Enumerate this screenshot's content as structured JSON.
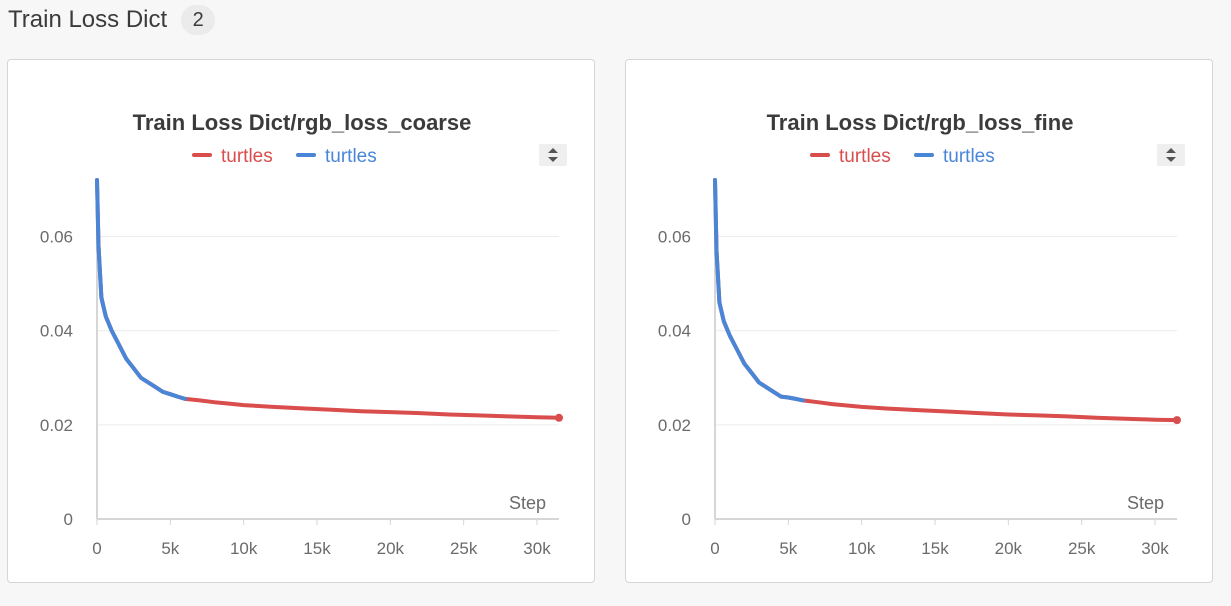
{
  "section": {
    "title": "Train Loss Dict",
    "count": "2"
  },
  "colors": {
    "red_run": "#d94d4d",
    "blue_run": "#4a86d8"
  },
  "chart_data": [
    {
      "type": "line",
      "title": "Train Loss Dict/rgb_loss_coarse",
      "xlabel": "Step",
      "ylabel": "",
      "xlim": [
        0,
        31500
      ],
      "ylim": [
        0,
        0.072
      ],
      "x_ticks": [
        0,
        5000,
        10000,
        15000,
        20000,
        25000,
        30000
      ],
      "x_tick_labels": [
        "0",
        "5k",
        "10k",
        "15k",
        "20k",
        "25k",
        "30k"
      ],
      "y_ticks": [
        0,
        0.02,
        0.04,
        0.06
      ],
      "y_tick_labels": [
        "0",
        "0.02",
        "0.04",
        "0.06"
      ],
      "grid": true,
      "legend_position": "top",
      "series": [
        {
          "name": "turtles",
          "color": "#d94d4d",
          "x": [
            0,
            100,
            300,
            600,
            1000,
            1500,
            2000,
            2500,
            3000,
            3500,
            4000,
            4500,
            5000,
            5500,
            6000,
            7000,
            8000,
            9000,
            10000,
            12000,
            14000,
            16000,
            18000,
            20000,
            22000,
            24000,
            26000,
            28000,
            30000,
            31500
          ],
          "y": [
            0.072,
            0.058,
            0.047,
            0.043,
            0.04,
            0.037,
            0.034,
            0.032,
            0.03,
            0.029,
            0.028,
            0.027,
            0.0265,
            0.026,
            0.0255,
            0.0252,
            0.0248,
            0.0245,
            0.0242,
            0.0238,
            0.0235,
            0.0232,
            0.0229,
            0.0227,
            0.0225,
            0.0222,
            0.022,
            0.0218,
            0.0216,
            0.0215
          ]
        },
        {
          "name": "turtles",
          "color": "#4a86d8",
          "x": [
            0,
            100,
            300,
            600,
            1000,
            1500,
            2000,
            2500,
            3000,
            3500,
            4000,
            4500,
            5000,
            5500,
            6000
          ],
          "y": [
            0.072,
            0.058,
            0.047,
            0.043,
            0.04,
            0.037,
            0.034,
            0.032,
            0.03,
            0.029,
            0.028,
            0.027,
            0.0265,
            0.026,
            0.0255
          ]
        }
      ]
    },
    {
      "type": "line",
      "title": "Train Loss Dict/rgb_loss_fine",
      "xlabel": "Step",
      "ylabel": "",
      "xlim": [
        0,
        31500
      ],
      "ylim": [
        0,
        0.072
      ],
      "x_ticks": [
        0,
        5000,
        10000,
        15000,
        20000,
        25000,
        30000
      ],
      "x_tick_labels": [
        "0",
        "5k",
        "10k",
        "15k",
        "20k",
        "25k",
        "30k"
      ],
      "y_ticks": [
        0,
        0.02,
        0.04,
        0.06
      ],
      "y_tick_labels": [
        "0",
        "0.02",
        "0.04",
        "0.06"
      ],
      "grid": true,
      "legend_position": "top",
      "series": [
        {
          "name": "turtles",
          "color": "#d94d4d",
          "x": [
            0,
            100,
            300,
            600,
            1000,
            1500,
            2000,
            2500,
            3000,
            3500,
            4000,
            4500,
            5000,
            5500,
            6000,
            7000,
            8000,
            9000,
            10000,
            12000,
            14000,
            16000,
            18000,
            20000,
            22000,
            24000,
            26000,
            28000,
            30000,
            31500
          ],
          "y": [
            0.072,
            0.057,
            0.046,
            0.042,
            0.039,
            0.036,
            0.033,
            0.031,
            0.029,
            0.028,
            0.027,
            0.026,
            0.0258,
            0.0255,
            0.0252,
            0.0248,
            0.0244,
            0.0241,
            0.0238,
            0.0234,
            0.0231,
            0.0228,
            0.0225,
            0.0222,
            0.022,
            0.0218,
            0.0215,
            0.0213,
            0.0211,
            0.021
          ]
        },
        {
          "name": "turtles",
          "color": "#4a86d8",
          "x": [
            0,
            100,
            300,
            600,
            1000,
            1500,
            2000,
            2500,
            3000,
            3500,
            4000,
            4500,
            5000,
            5500,
            6000
          ],
          "y": [
            0.072,
            0.057,
            0.046,
            0.042,
            0.039,
            0.036,
            0.033,
            0.031,
            0.029,
            0.028,
            0.027,
            0.026,
            0.0258,
            0.0255,
            0.0252
          ]
        }
      ]
    }
  ]
}
